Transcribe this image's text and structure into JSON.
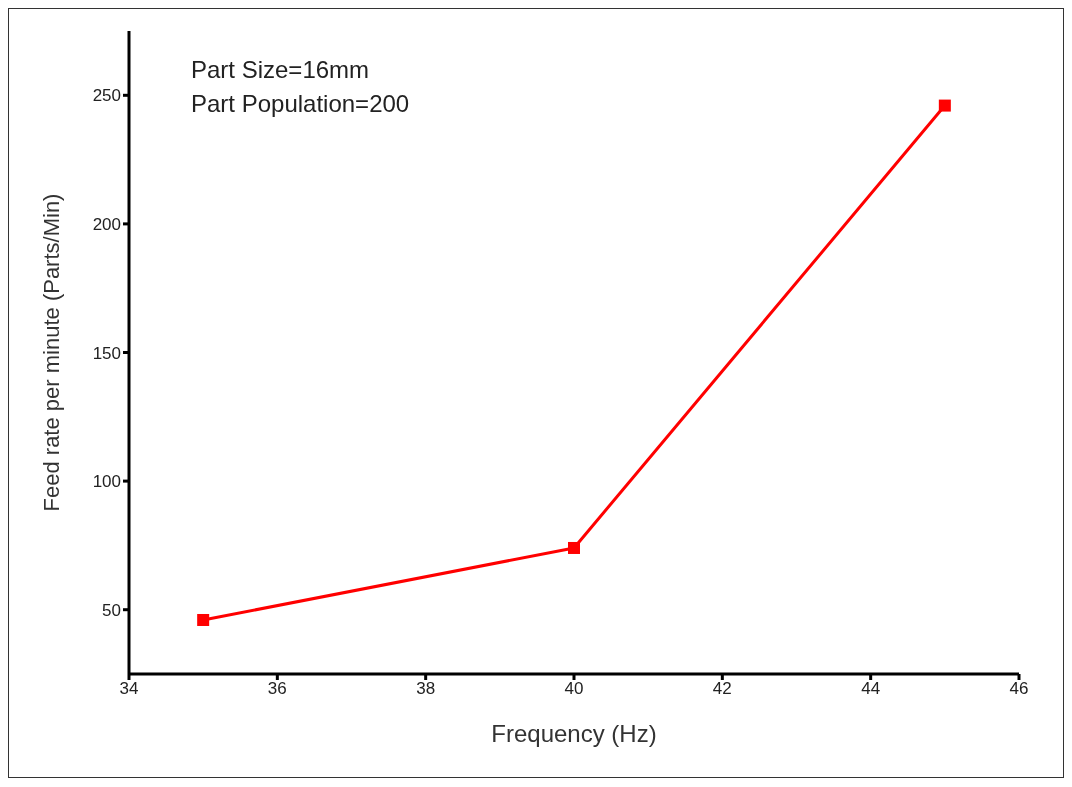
{
  "chart_data": {
    "type": "line",
    "xlabel": "Frequency (Hz)",
    "ylabel": "Feed rate per minute (Parts/Min)",
    "annotations": [
      "Part Size=16mm",
      "Part Population=200"
    ],
    "x": [
      35,
      40,
      45
    ],
    "series": [
      {
        "color": "#ff0000",
        "values": [
          46,
          74,
          246
        ]
      }
    ],
    "xlim": [
      34,
      46
    ],
    "xticks": [
      34,
      36,
      38,
      40,
      42,
      44,
      46
    ],
    "ylim": [
      25,
      275
    ],
    "yticks": [
      50,
      100,
      150,
      200,
      250
    ],
    "grid": false,
    "marker": "square",
    "line_style": "solid"
  }
}
